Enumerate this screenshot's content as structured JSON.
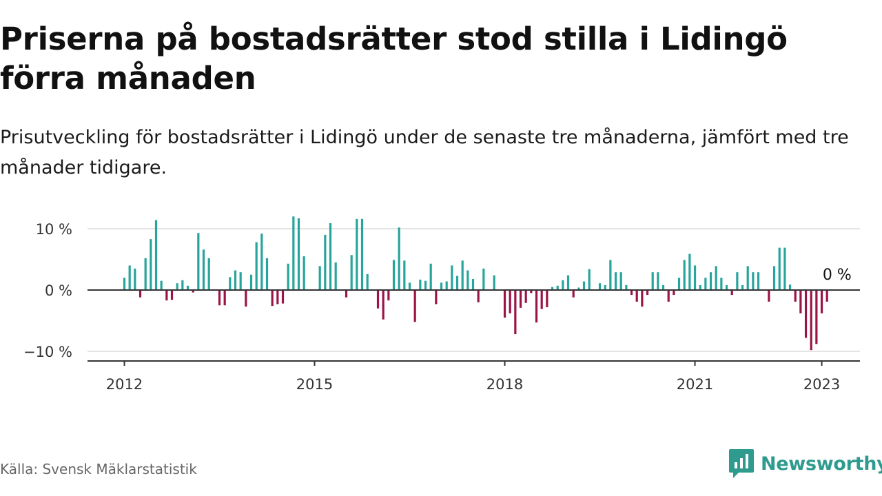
{
  "header": {
    "title": "Priserna på bostadsrätter stod stilla i Lidingö förra månaden",
    "subtitle": "Prisutveckling för bostadsrätter i Lidingö under de senaste tre månaderna, jämfört med tre månader tidigare."
  },
  "footer": {
    "source": "Källa: Svensk Mäklarstatistik",
    "brand": "Newsworthy",
    "brand_icon": "newsworthy-logo-icon"
  },
  "chart_data": {
    "type": "bar",
    "x_start": "2012-01",
    "ylim": [
      -11,
      12
    ],
    "yticks": [
      -10,
      0,
      10
    ],
    "ytick_labels": [
      "−10 %",
      "0 %",
      "10 %"
    ],
    "xticks": [
      "2012",
      "2015",
      "2018",
      "2021",
      "2023"
    ],
    "xtick_dates": [
      "2012-01",
      "2015-01",
      "2018-01",
      "2021-01",
      "2023-01"
    ],
    "colors": {
      "positive": "#27a49b",
      "negative": "#9b1446"
    },
    "annotation": "0 %",
    "grid": true,
    "values": [
      2.0,
      4.0,
      3.5,
      -1.2,
      5.2,
      8.3,
      11.4,
      1.5,
      -1.7,
      -1.6,
      1.1,
      1.6,
      0.7,
      -0.4,
      9.3,
      6.6,
      5.2,
      0,
      -2.5,
      -2.5,
      2.1,
      3.2,
      2.9,
      -2.7,
      2.5,
      7.8,
      9.2,
      5.2,
      -2.6,
      -2.3,
      -2.2,
      4.3,
      12.0,
      11.7,
      5.5,
      0,
      0,
      3.9,
      9.0,
      10.9,
      4.5,
      0,
      -1.2,
      5.7,
      11.6,
      11.6,
      2.6,
      0,
      -3.0,
      -4.8,
      -1.7,
      4.9,
      10.2,
      4.8,
      1.2,
      -5.2,
      1.7,
      1.5,
      4.3,
      -2.3,
      1.2,
      1.4,
      4.0,
      2.3,
      4.8,
      3.2,
      1.8,
      -2.0,
      3.5,
      0,
      2.4,
      0,
      -4.5,
      -3.8,
      -7.2,
      -2.9,
      -2.1,
      -0.5,
      -5.3,
      -3.1,
      -2.8,
      0.5,
      0.7,
      1.6,
      2.4,
      -1.2,
      0.4,
      1.4,
      3.4,
      0,
      1.1,
      0.8,
      4.9,
      2.9,
      2.9,
      0.8,
      -0.8,
      -1.9,
      -2.7,
      -0.8,
      2.9,
      2.9,
      0.8,
      -1.9,
      -0.8,
      2.0,
      4.9,
      5.9,
      4.0,
      0.8,
      2.0,
      2.9,
      3.9,
      2.0,
      0.8,
      -0.8,
      2.9,
      0.8,
      3.9,
      2.9,
      2.9,
      0,
      -1.9,
      3.9,
      6.9,
      6.9,
      0.9,
      -1.9,
      -3.8,
      -7.8,
      -9.8,
      -8.8,
      -3.8,
      -1.9,
      0
    ]
  }
}
